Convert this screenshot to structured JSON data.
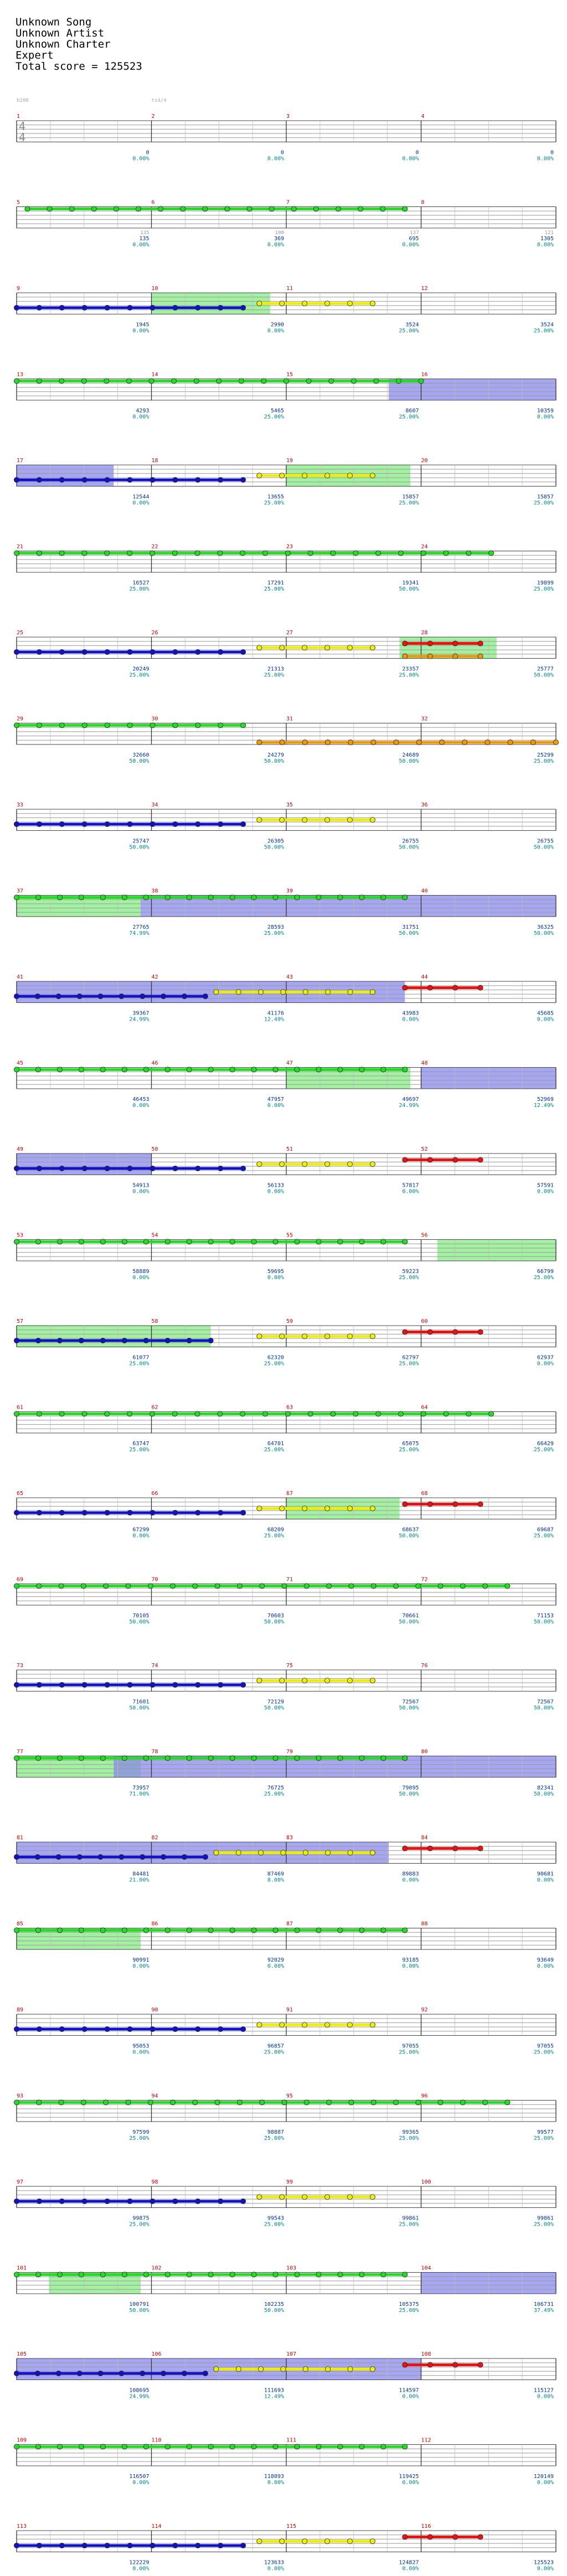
{
  "song": {
    "title": "Unknown Song",
    "artist": "Unknown Artist",
    "charter": "Unknown Charter",
    "difficulty": "Expert",
    "total_score_label": "Total score = 125523"
  },
  "first_row_meta": {
    "bpm_label": "b200",
    "ts_label": "ts4/4",
    "time_sig_top": "4",
    "time_sig_bottom": "4"
  },
  "colors": {
    "green": "#22dd22",
    "red": "#ee1111",
    "yellow": "#eeee00",
    "blue": "#1111cc",
    "orange": "#ee9900",
    "starpower_fill": "#99ee99",
    "solo_fill": "#8888ee",
    "measure_number": "#cc0000",
    "percent": "#008888",
    "score": "#003399"
  },
  "rows": [
    {
      "m": [
        1,
        2,
        3,
        4
      ],
      "pct": [
        "0.00%",
        "0.00%",
        "0.00%",
        "0.00%"
      ],
      "sc": [
        "0",
        "0",
        "0",
        "0"
      ],
      "notes": [
        "",
        "",
        "",
        ""
      ],
      "hl": []
    },
    {
      "m": [
        5,
        6,
        7,
        8
      ],
      "pct": [
        "0.00%",
        "0.00%",
        "0.00%",
        "0.00%"
      ],
      "sc": [
        "135",
        "369",
        "695",
        "1305"
      ],
      "notes": [
        "135",
        "100",
        "137",
        "121"
      ],
      "hl": [],
      "sus": [
        [
          "green",
          0.02,
          0.72
        ]
      ]
    },
    {
      "m": [
        9,
        10,
        11,
        12
      ],
      "pct": [
        "0.00%",
        "0.00%",
        "25.00%",
        "25.00%"
      ],
      "sc": [
        "1945",
        "2990",
        "3524",
        "3524"
      ],
      "notes": [
        "",
        "",
        "",
        ""
      ],
      "hl": [
        [
          "sp",
          0.25,
          0.47
        ]
      ],
      "sus": [
        [
          "blue",
          0.0,
          0.42
        ],
        [
          "yellow",
          0.45,
          0.66
        ]
      ]
    },
    {
      "m": [
        13,
        14,
        15,
        16
      ],
      "pct": [
        "0.00%",
        "25.00%",
        "25.00%",
        "0.00%"
      ],
      "sc": [
        "4293",
        "5465",
        "8607",
        "10359"
      ],
      "notes": [
        "",
        "",
        "",
        ""
      ],
      "hl": [
        [
          "solo",
          0.69,
          1.0
        ]
      ],
      "sus": [
        [
          "green",
          0.0,
          0.75
        ]
      ]
    },
    {
      "m": [
        17,
        18,
        19,
        20
      ],
      "pct": [
        "0.00%",
        "25.00%",
        "25.00%",
        "25.00%"
      ],
      "sc": [
        "12544",
        "13655",
        "15857",
        "15857"
      ],
      "notes": [
        "",
        "",
        "",
        ""
      ],
      "hl": [
        [
          "solo",
          0.0,
          0.18
        ],
        [
          "sp",
          0.5,
          0.73
        ]
      ],
      "sus": [
        [
          "blue",
          0.0,
          0.42
        ],
        [
          "yellow",
          0.45,
          0.66
        ]
      ]
    },
    {
      "m": [
        21,
        22,
        23,
        24
      ],
      "pct": [
        "25.00%",
        "25.00%",
        "50.00%",
        "25.00%"
      ],
      "sc": [
        "16527",
        "17291",
        "19341",
        "19899"
      ],
      "notes": [
        "",
        "",
        "",
        ""
      ],
      "hl": [],
      "sus": [
        [
          "green",
          0.0,
          0.88
        ]
      ]
    },
    {
      "m": [
        25,
        26,
        27,
        28
      ],
      "pct": [
        "25.00%",
        "25.00%",
        "25.00%",
        "50.00%"
      ],
      "sc": [
        "20249",
        "21313",
        "23357",
        "25777"
      ],
      "notes": [
        "",
        "",
        "",
        ""
      ],
      "hl": [
        [
          "sp",
          0.71,
          0.89
        ]
      ],
      "sus": [
        [
          "blue",
          0.0,
          0.42
        ],
        [
          "yellow",
          0.45,
          0.66
        ],
        [
          "red",
          0.72,
          0.86
        ],
        [
          "orange",
          0.72,
          0.86
        ]
      ]
    },
    {
      "m": [
        29,
        30,
        31,
        32
      ],
      "pct": [
        "50.00%",
        "50.00%",
        "50.00%",
        "25.00%"
      ],
      "sc": [
        "32660",
        "24279",
        "24689",
        "25299"
      ],
      "notes": [
        "",
        "",
        "",
        ""
      ],
      "hl": [],
      "sus": [
        [
          "green",
          0.0,
          0.42
        ],
        [
          "orange",
          0.45,
          1.0
        ]
      ]
    },
    {
      "m": [
        33,
        34,
        35,
        36
      ],
      "pct": [
        "50.00%",
        "50.00%",
        "50.00%",
        "50.00%"
      ],
      "sc": [
        "25747",
        "26305",
        "26755",
        "26755"
      ],
      "notes": [
        "",
        "",
        "",
        ""
      ],
      "hl": [],
      "sus": [
        [
          "blue",
          0.0,
          0.42
        ],
        [
          "yellow",
          0.45,
          0.66
        ]
      ]
    },
    {
      "m": [
        37,
        38,
        39,
        40
      ],
      "pct": [
        "74.99%",
        "25.00%",
        "50.00%",
        "50.00%"
      ],
      "sc": [
        "27765",
        "28593",
        "31751",
        "36325"
      ],
      "notes": [
        "",
        "",
        "",
        ""
      ],
      "hl": [
        [
          "sp",
          0.0,
          0.23
        ],
        [
          "solo",
          0.23,
          1.0
        ]
      ],
      "sus": [
        [
          "green",
          0.0,
          0.72
        ]
      ]
    },
    {
      "m": [
        41,
        42,
        43,
        44
      ],
      "pct": [
        "24.99%",
        "12.49%",
        "0.00%",
        "0.00%"
      ],
      "sc": [
        "39367",
        "41176",
        "43983",
        "45685"
      ],
      "notes": [
        "",
        "",
        "",
        ""
      ],
      "hl": [
        [
          "solo",
          0.0,
          0.72
        ]
      ],
      "sus": [
        [
          "blue",
          0.0,
          0.35
        ],
        [
          "yellow",
          0.37,
          0.66
        ],
        [
          "red",
          0.72,
          0.86
        ]
      ]
    },
    {
      "m": [
        45,
        46,
        47,
        48
      ],
      "pct": [
        "0.00%",
        "0.00%",
        "24.99%",
        "12.49%"
      ],
      "sc": [
        "46453",
        "47957",
        "49697",
        "52969"
      ],
      "notes": [
        "",
        "",
        "",
        ""
      ],
      "hl": [
        [
          "sp",
          0.5,
          0.73
        ],
        [
          "solo",
          0.75,
          1.0
        ]
      ],
      "sus": [
        [
          "green",
          0.0,
          0.72
        ]
      ]
    },
    {
      "m": [
        49,
        50,
        51,
        52
      ],
      "pct": [
        "0.00%",
        "0.00%",
        "0.00%",
        "0.00%"
      ],
      "sc": [
        "54913",
        "56133",
        "57817",
        "57591"
      ],
      "notes": [
        "",
        "",
        "",
        ""
      ],
      "hl": [
        [
          "solo",
          0.0,
          0.25
        ]
      ],
      "sus": [
        [
          "blue",
          0.0,
          0.42
        ],
        [
          "yellow",
          0.45,
          0.66
        ],
        [
          "red",
          0.72,
          0.86
        ]
      ]
    },
    {
      "m": [
        53,
        54,
        55,
        56
      ],
      "pct": [
        "0.00%",
        "0.00%",
        "25.00%",
        "25.00%"
      ],
      "sc": [
        "58889",
        "59695",
        "59223",
        "66799"
      ],
      "notes": [
        "",
        "",
        "",
        ""
      ],
      "hl": [
        [
          "sp",
          0.78,
          1.0
        ]
      ],
      "sus": [
        [
          "green",
          0.0,
          0.72
        ]
      ]
    },
    {
      "m": [
        57,
        58,
        59,
        60
      ],
      "pct": [
        "25.00%",
        "25.00%",
        "25.00%",
        "0.00%"
      ],
      "sc": [
        "61077",
        "62320",
        "62797",
        "62937"
      ],
      "notes": [
        "",
        "",
        "",
        ""
      ],
      "hl": [
        [
          "sp",
          0.0,
          0.36
        ]
      ],
      "sus": [
        [
          "blue",
          0.0,
          0.36
        ],
        [
          "yellow",
          0.45,
          0.66
        ],
        [
          "red",
          0.72,
          0.86
        ]
      ]
    },
    {
      "m": [
        61,
        62,
        63,
        64
      ],
      "pct": [
        "25.00%",
        "25.00%",
        "25.00%",
        "25.00%"
      ],
      "sc": [
        "63747",
        "64701",
        "65075",
        "66429"
      ],
      "notes": [
        "",
        "",
        "",
        ""
      ],
      "hl": [],
      "sus": [
        [
          "green",
          0.0,
          0.88
        ]
      ]
    },
    {
      "m": [
        65,
        66,
        67,
        68
      ],
      "pct": [
        "0.00%",
        "25.00%",
        "50.00%",
        "25.00%"
      ],
      "sc": [
        "67299",
        "68209",
        "68637",
        "69687"
      ],
      "notes": [
        "",
        "",
        "",
        ""
      ],
      "hl": [
        [
          "sp",
          0.5,
          0.71
        ]
      ],
      "sus": [
        [
          "blue",
          0.0,
          0.42
        ],
        [
          "yellow",
          0.45,
          0.66
        ],
        [
          "red",
          0.72,
          0.86
        ]
      ]
    },
    {
      "m": [
        69,
        70,
        71,
        72
      ],
      "pct": [
        "50.00%",
        "50.00%",
        "50.00%",
        "50.00%"
      ],
      "sc": [
        "70105",
        "70603",
        "70661",
        "71153"
      ],
      "notes": [
        "",
        "",
        "",
        ""
      ],
      "hl": [],
      "sus": [
        [
          "green",
          0.0,
          0.91
        ]
      ]
    },
    {
      "m": [
        73,
        74,
        75,
        76
      ],
      "pct": [
        "50.00%",
        "50.00%",
        "50.00%",
        "50.00%"
      ],
      "sc": [
        "71601",
        "72129",
        "72567",
        "72567"
      ],
      "notes": [
        "",
        "",
        "",
        ""
      ],
      "hl": [],
      "sus": [
        [
          "blue",
          0.0,
          0.42
        ],
        [
          "yellow",
          0.45,
          0.66
        ]
      ]
    },
    {
      "m": [
        77,
        78,
        79,
        80
      ],
      "pct": [
        "71.00%",
        "25.00%",
        "50.00%",
        "50.00%"
      ],
      "sc": [
        "73957",
        "76725",
        "79095",
        "82341"
      ],
      "notes": [
        "",
        "",
        "",
        ""
      ],
      "hl": [
        [
          "sp",
          0.0,
          0.23
        ],
        [
          "solo",
          0.18,
          1.0
        ]
      ],
      "sus": [
        [
          "green",
          0.0,
          0.72
        ]
      ]
    },
    {
      "m": [
        81,
        82,
        83,
        84
      ],
      "pct": [
        "21.00%",
        "8.00%",
        "0.00%",
        "0.00%"
      ],
      "sc": [
        "84481",
        "87469",
        "89883",
        "90681"
      ],
      "notes": [
        "",
        "",
        "",
        ""
      ],
      "hl": [
        [
          "solo",
          0.0,
          0.69
        ]
      ],
      "sus": [
        [
          "blue",
          0.0,
          0.35
        ],
        [
          "yellow",
          0.37,
          0.66
        ],
        [
          "red",
          0.72,
          0.86
        ]
      ]
    },
    {
      "m": [
        85,
        86,
        87,
        88
      ],
      "pct": [
        "0.00%",
        "0.00%",
        "0.00%",
        "0.00%"
      ],
      "sc": [
        "90991",
        "92029",
        "93185",
        "93649"
      ],
      "notes": [
        "",
        "",
        "",
        ""
      ],
      "hl": [
        [
          "sp",
          0.0,
          0.23
        ]
      ],
      "sus": [
        [
          "green",
          0.0,
          0.72
        ]
      ]
    },
    {
      "m": [
        89,
        90,
        91,
        92
      ],
      "pct": [
        "0.00%",
        "25.00%",
        "25.00%",
        "25.00%"
      ],
      "sc": [
        "95053",
        "96857",
        "97055",
        "97055"
      ],
      "notes": [
        "",
        "",
        "",
        ""
      ],
      "hl": [],
      "sus": [
        [
          "blue",
          0.0,
          0.42
        ],
        [
          "yellow",
          0.45,
          0.66
        ]
      ]
    },
    {
      "m": [
        93,
        94,
        95,
        96
      ],
      "pct": [
        "25.00%",
        "25.00%",
        "25.00%",
        "25.00%"
      ],
      "sc": [
        "97599",
        "98887",
        "99365",
        "99577"
      ],
      "notes": [
        "",
        "",
        "",
        ""
      ],
      "hl": [],
      "sus": [
        [
          "green",
          0.0,
          0.91
        ]
      ]
    },
    {
      "m": [
        97,
        98,
        99,
        100
      ],
      "pct": [
        "25.00%",
        "25.00%",
        "25.00%",
        "25.00%"
      ],
      "sc": [
        "99875",
        "99543",
        "99861",
        "99861"
      ],
      "notes": [
        "",
        "",
        "",
        ""
      ],
      "hl": [],
      "sus": [
        [
          "blue",
          0.0,
          0.42
        ],
        [
          "yellow",
          0.45,
          0.66
        ]
      ]
    },
    {
      "m": [
        101,
        102,
        103,
        104
      ],
      "pct": [
        "50.00%",
        "50.00%",
        "25.00%",
        "37.49%"
      ],
      "sc": [
        "100791",
        "102235",
        "105375",
        "106731"
      ],
      "notes": [
        "",
        "",
        "",
        ""
      ],
      "hl": [
        [
          "sp",
          0.06,
          0.23
        ],
        [
          "solo",
          0.75,
          1.0
        ]
      ],
      "sus": [
        [
          "green",
          0.0,
          0.72
        ]
      ]
    },
    {
      "m": [
        105,
        106,
        107,
        108
      ],
      "pct": [
        "24.99%",
        "12.49%",
        "0.00%",
        "0.00%"
      ],
      "sc": [
        "108695",
        "111693",
        "114597",
        "115127"
      ],
      "notes": [
        "",
        "",
        "",
        ""
      ],
      "hl": [
        [
          "solo",
          0.0,
          0.75
        ]
      ],
      "sus": [
        [
          "blue",
          0.0,
          0.35
        ],
        [
          "yellow",
          0.37,
          0.66
        ],
        [
          "red",
          0.72,
          0.86
        ]
      ]
    },
    {
      "m": [
        109,
        110,
        111,
        112
      ],
      "pct": [
        "0.00%",
        "0.00%",
        "0.00%",
        "0.00%"
      ],
      "sc": [
        "116507",
        "118093",
        "119425",
        "120149"
      ],
      "notes": [
        "",
        "",
        "",
        ""
      ],
      "hl": [],
      "sus": [
        [
          "green",
          0.0,
          0.72
        ]
      ]
    },
    {
      "m": [
        113,
        114,
        115,
        116
      ],
      "pct": [
        "0.00%",
        "0.00%",
        "0.00%",
        "0.00%"
      ],
      "sc": [
        "122229",
        "123633",
        "124827",
        "125523"
      ],
      "notes": [
        "",
        "",
        "",
        ""
      ],
      "hl": [],
      "sus": [
        [
          "blue",
          0.0,
          0.42
        ],
        [
          "yellow",
          0.45,
          0.66
        ],
        [
          "red",
          0.72,
          0.86
        ]
      ]
    }
  ]
}
